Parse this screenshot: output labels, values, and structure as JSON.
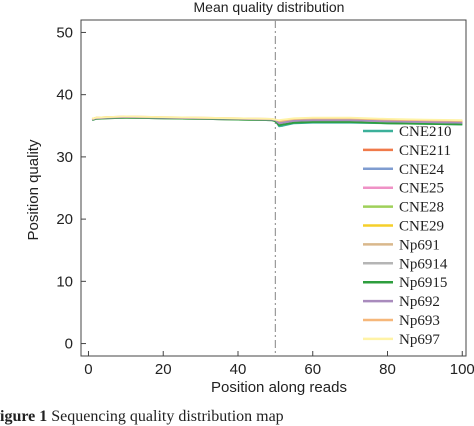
{
  "caption": {
    "label": "igure 1",
    "text": "Sequencing quality distribution map"
  },
  "chart_data": {
    "type": "line",
    "title": "Mean quality distribution",
    "xlabel": "Position along reads",
    "ylabel": "Position quality",
    "xlim": [
      -2,
      101
    ],
    "ylim": [
      -2,
      52
    ],
    "xticks": [
      0,
      20,
      40,
      60,
      80,
      100
    ],
    "yticks": [
      0,
      10,
      20,
      30,
      40,
      50
    ],
    "vline": 50,
    "grid": false,
    "legend_position": "right",
    "series": [
      {
        "name": "CNE210",
        "color": "#3cb09a",
        "x": [
          1,
          2,
          5,
          10,
          20,
          30,
          40,
          49,
          50,
          51,
          52,
          55,
          60,
          70,
          80,
          90,
          100
        ],
        "y": [
          35.9,
          36.2,
          36.3,
          36.4,
          36.3,
          36.2,
          36.1,
          36.0,
          35.8,
          34.9,
          35.0,
          35.4,
          35.5,
          35.5,
          35.4,
          35.3,
          35.2
        ]
      },
      {
        "name": "CNE211",
        "color": "#f07a4a",
        "x": [
          1,
          2,
          5,
          10,
          20,
          30,
          40,
          49,
          50,
          51,
          52,
          55,
          60,
          70,
          80,
          90,
          100
        ],
        "y": [
          36.0,
          36.2,
          36.3,
          36.4,
          36.3,
          36.2,
          36.1,
          36.0,
          35.9,
          35.3,
          35.4,
          35.7,
          35.8,
          35.8,
          35.6,
          35.5,
          35.4
        ]
      },
      {
        "name": "CNE24",
        "color": "#7f9cd0",
        "x": [
          1,
          2,
          5,
          10,
          20,
          30,
          40,
          49,
          50,
          51,
          52,
          55,
          60,
          70,
          80,
          90,
          100
        ],
        "y": [
          36.0,
          36.1,
          36.3,
          36.3,
          36.2,
          36.1,
          36.0,
          35.9,
          35.8,
          35.2,
          35.3,
          35.6,
          35.7,
          35.7,
          35.5,
          35.4,
          35.3
        ]
      },
      {
        "name": "CNE25",
        "color": "#ef92c6",
        "x": [
          1,
          2,
          5,
          10,
          20,
          30,
          40,
          49,
          50,
          51,
          52,
          55,
          60,
          70,
          80,
          90,
          100
        ],
        "y": [
          36.0,
          36.2,
          36.3,
          36.4,
          36.3,
          36.2,
          36.1,
          36.0,
          35.9,
          35.4,
          35.5,
          35.8,
          35.9,
          35.9,
          35.7,
          35.6,
          35.5
        ]
      },
      {
        "name": "CNE28",
        "color": "#9fd05a",
        "x": [
          1,
          2,
          5,
          10,
          20,
          30,
          40,
          49,
          50,
          51,
          52,
          55,
          60,
          70,
          80,
          90,
          100
        ],
        "y": [
          36.0,
          36.2,
          36.3,
          36.3,
          36.2,
          36.1,
          36.0,
          35.9,
          35.8,
          35.3,
          35.4,
          35.7,
          35.8,
          35.8,
          35.6,
          35.5,
          35.4
        ]
      },
      {
        "name": "CNE29",
        "color": "#f5cf2a",
        "x": [
          1,
          2,
          5,
          10,
          20,
          30,
          40,
          49,
          50,
          51,
          52,
          55,
          60,
          70,
          80,
          90,
          100
        ],
        "y": [
          36.1,
          36.3,
          36.4,
          36.4,
          36.3,
          36.2,
          36.1,
          36.0,
          36.0,
          35.7,
          35.8,
          36.0,
          36.1,
          36.1,
          35.9,
          35.8,
          35.7
        ]
      },
      {
        "name": "Np691",
        "color": "#d9b88c",
        "x": [
          1,
          2,
          5,
          10,
          20,
          30,
          40,
          49,
          50,
          51,
          52,
          55,
          60,
          70,
          80,
          90,
          100
        ],
        "y": [
          36.0,
          36.2,
          36.3,
          36.4,
          36.3,
          36.2,
          36.1,
          36.0,
          35.9,
          35.5,
          35.6,
          35.9,
          36.0,
          36.0,
          35.8,
          35.7,
          35.6
        ]
      },
      {
        "name": "Np6914",
        "color": "#b5b5b5",
        "x": [
          1,
          2,
          5,
          10,
          20,
          30,
          40,
          49,
          50,
          51,
          52,
          55,
          60,
          70,
          80,
          90,
          100
        ],
        "y": [
          36.0,
          36.1,
          36.2,
          36.3,
          36.2,
          36.1,
          36.0,
          35.9,
          35.8,
          35.3,
          35.4,
          35.6,
          35.7,
          35.7,
          35.5,
          35.4,
          35.3
        ]
      },
      {
        "name": "Np6915",
        "color": "#2e9e3e",
        "x": [
          1,
          2,
          5,
          10,
          20,
          30,
          40,
          49,
          50,
          51,
          52,
          55,
          60,
          70,
          80,
          90,
          100
        ],
        "y": [
          35.9,
          36.1,
          36.2,
          36.3,
          36.2,
          36.1,
          36.0,
          35.9,
          35.7,
          35.1,
          35.2,
          35.5,
          35.6,
          35.6,
          35.4,
          35.3,
          35.2
        ]
      },
      {
        "name": "Np692",
        "color": "#a98bbd",
        "x": [
          1,
          2,
          5,
          10,
          20,
          30,
          40,
          49,
          50,
          51,
          52,
          55,
          60,
          70,
          80,
          90,
          100
        ],
        "y": [
          36.0,
          36.2,
          36.3,
          36.4,
          36.3,
          36.2,
          36.1,
          36.0,
          35.9,
          35.4,
          35.5,
          35.8,
          35.9,
          35.9,
          35.7,
          35.6,
          35.5
        ]
      },
      {
        "name": "Np693",
        "color": "#f6b77a",
        "x": [
          1,
          2,
          5,
          10,
          20,
          30,
          40,
          49,
          50,
          51,
          52,
          55,
          60,
          70,
          80,
          90,
          100
        ],
        "y": [
          36.1,
          36.3,
          36.4,
          36.5,
          36.4,
          36.3,
          36.2,
          36.1,
          36.0,
          35.8,
          35.9,
          36.1,
          36.2,
          36.2,
          36.0,
          35.9,
          35.8
        ]
      },
      {
        "name": "Np697",
        "color": "#fff3a6",
        "x": [
          1,
          2,
          5,
          10,
          20,
          30,
          40,
          49,
          50,
          51,
          52,
          55,
          60,
          70,
          80,
          90,
          100
        ],
        "y": [
          36.1,
          36.3,
          36.4,
          36.5,
          36.4,
          36.3,
          36.2,
          36.1,
          36.0,
          35.9,
          36.0,
          36.2,
          36.3,
          36.3,
          36.1,
          36.0,
          35.9
        ]
      }
    ]
  }
}
